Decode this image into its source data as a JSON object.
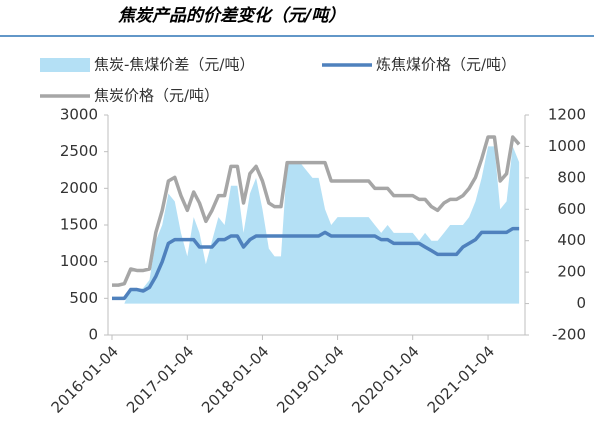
{
  "chart_data": {
    "type": "line",
    "title": "焦炭产品的价差变化（元/吨）",
    "x": [
      "2016-01-04",
      "2016-02-04",
      "2016-03-04",
      "2016-04-04",
      "2016-05-04",
      "2016-06-04",
      "2016-07-04",
      "2016-08-04",
      "2016-09-04",
      "2016-10-04",
      "2016-11-04",
      "2016-12-04",
      "2017-01-04",
      "2017-02-04",
      "2017-03-04",
      "2017-04-04",
      "2017-05-04",
      "2017-06-04",
      "2017-07-04",
      "2017-08-04",
      "2017-09-04",
      "2017-10-04",
      "2017-11-04",
      "2017-12-04",
      "2018-01-04",
      "2018-02-04",
      "2018-03-04",
      "2018-04-04",
      "2018-05-04",
      "2018-06-04",
      "2018-07-04",
      "2018-08-04",
      "2018-09-04",
      "2018-10-04",
      "2018-11-04",
      "2018-12-04",
      "2019-01-04",
      "2019-02-04",
      "2019-03-04",
      "2019-04-04",
      "2019-05-04",
      "2019-06-04",
      "2019-07-04",
      "2019-08-04",
      "2019-09-04",
      "2019-10-04",
      "2019-11-04",
      "2019-12-04",
      "2020-01-04",
      "2020-02-04",
      "2020-03-04",
      "2020-04-04",
      "2020-05-04",
      "2020-06-04",
      "2020-07-04",
      "2020-08-04",
      "2020-09-04",
      "2020-10-04",
      "2020-11-04",
      "2020-12-04",
      "2021-01-04",
      "2021-02-04",
      "2021-03-04",
      "2021-04-04",
      "2021-05-04",
      "2021-06-04"
    ],
    "series": [
      {
        "name": "焦炭-焦煤价差（元/吨）",
        "type": "area",
        "axis": "y2",
        "color": "#b4e0f5",
        "values": [
          0,
          0,
          0,
          100,
          80,
          100,
          150,
          400,
          500,
          700,
          650,
          450,
          300,
          550,
          450,
          250,
          400,
          550,
          500,
          750,
          750,
          450,
          700,
          800,
          600,
          350,
          300,
          300,
          900,
          900,
          900,
          850,
          800,
          800,
          600,
          500,
          550,
          550,
          550,
          550,
          550,
          550,
          500,
          450,
          500,
          450,
          450,
          450,
          450,
          400,
          450,
          400,
          400,
          450,
          500,
          500,
          500,
          550,
          650,
          800,
          1000,
          1000,
          600,
          650,
          1000,
          900
        ]
      },
      {
        "name": "炼焦煤价格（元/吨）",
        "type": "line",
        "color": "#4f81bd",
        "values": [
          500,
          500,
          500,
          620,
          620,
          600,
          650,
          800,
          1000,
          1250,
          1300,
          1300,
          1300,
          1300,
          1200,
          1200,
          1200,
          1300,
          1300,
          1350,
          1350,
          1200,
          1300,
          1350,
          1350,
          1350,
          1350,
          1350,
          1350,
          1350,
          1350,
          1350,
          1350,
          1350,
          1400,
          1350,
          1350,
          1350,
          1350,
          1350,
          1350,
          1350,
          1350,
          1300,
          1300,
          1250,
          1250,
          1250,
          1250,
          1250,
          1200,
          1150,
          1100,
          1100,
          1100,
          1100,
          1200,
          1250,
          1300,
          1400,
          1400,
          1400,
          1400,
          1400,
          1450,
          1450
        ]
      },
      {
        "name": "焦炭价格（元/吨）",
        "type": "line",
        "color": "#a6a6a6",
        "values": [
          680,
          680,
          700,
          900,
          880,
          880,
          900,
          1400,
          1700,
          2100,
          2150,
          1900,
          1700,
          1950,
          1800,
          1550,
          1700,
          1900,
          1900,
          2300,
          2300,
          1800,
          2200,
          2300,
          2100,
          1800,
          1750,
          1750,
          2350,
          2350,
          2350,
          2350,
          2350,
          2350,
          2350,
          2100,
          2100,
          2100,
          2100,
          2100,
          2100,
          2100,
          2000,
          2000,
          2000,
          1900,
          1900,
          1900,
          1900,
          1850,
          1850,
          1750,
          1700,
          1800,
          1850,
          1850,
          1900,
          2000,
          2150,
          2400,
          2700,
          2700,
          2100,
          2200,
          2700,
          2600
        ]
      }
    ],
    "xlim": [
      "2016-01-04",
      "2021-06-18"
    ],
    "xticks": [
      "2016-01-04",
      "2017-01-04",
      "2018-01-04",
      "2019-01-04",
      "2020-01-04",
      "2021-01-04"
    ],
    "ylim": [
      0,
      3000
    ],
    "yticks": [
      0,
      500,
      1000,
      1500,
      2000,
      2500,
      3000
    ],
    "y2lim": [
      -200,
      1200
    ],
    "y2ticks": [
      -200,
      0,
      200,
      400,
      600,
      800,
      1000,
      1200
    ],
    "grid": false
  }
}
